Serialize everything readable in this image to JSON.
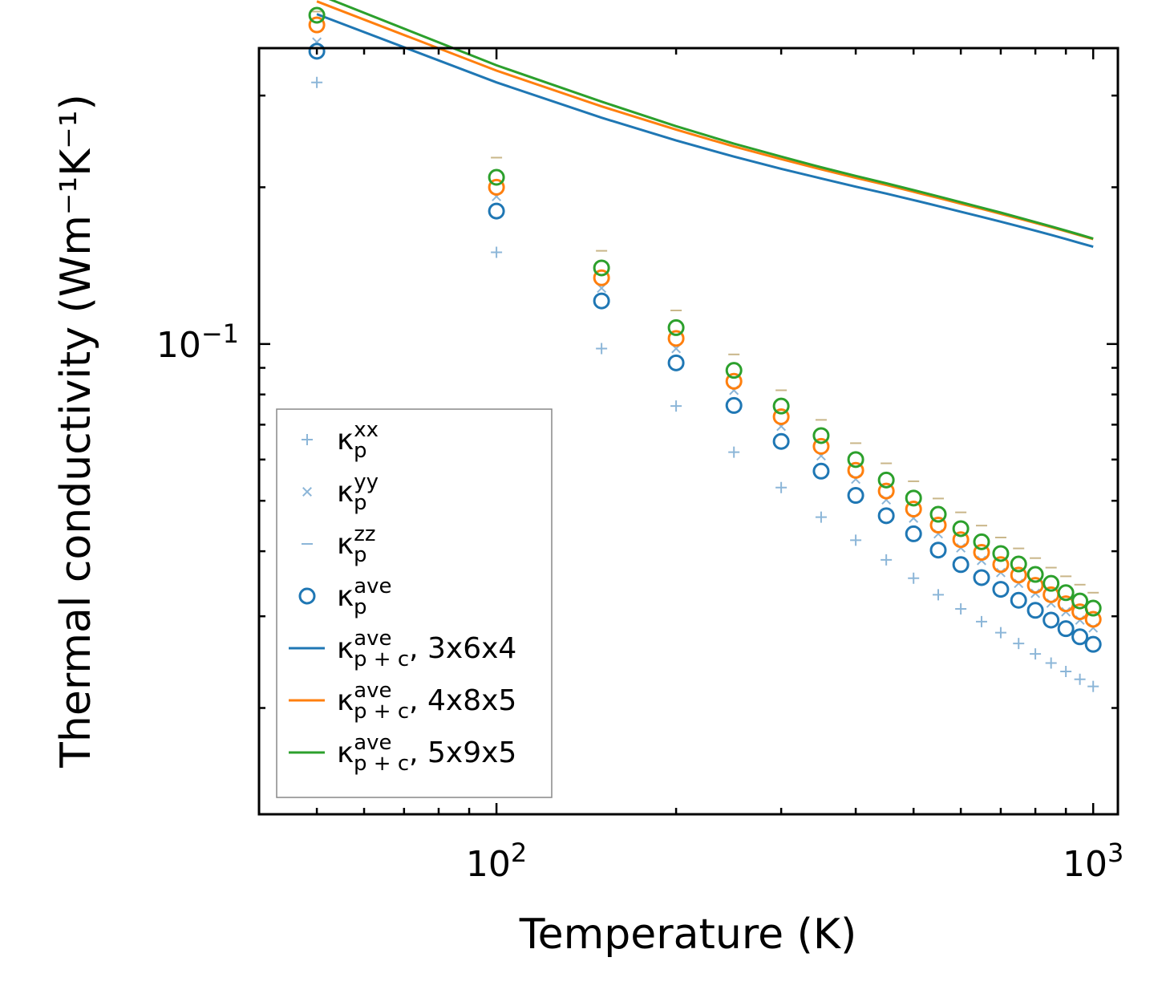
{
  "chart_data": {
    "type": "line",
    "scale": "log-log",
    "xlabel": "Temperature (K)",
    "ylabel": "Thermal conductivity (Wm⁻¹K⁻¹)",
    "xlim": [
      40,
      1100
    ],
    "ylim": [
      0.0125,
      0.37
    ],
    "x_tick_labels": [
      {
        "value": 100,
        "base": "10",
        "exp": "2"
      },
      {
        "value": 1000,
        "base": "10",
        "exp": "3"
      }
    ],
    "y_tick_labels": [
      {
        "value": 0.1,
        "base": "10",
        "exp": "−1"
      }
    ],
    "temperatures": [
      50,
      100,
      150,
      200,
      250,
      300,
      350,
      400,
      450,
      500,
      550,
      600,
      650,
      700,
      750,
      800,
      850,
      900,
      950,
      1000
    ],
    "point_series": [
      {
        "name": "kp_xx",
        "marker": "plus",
        "color": "#8cb6d8",
        "values": [
          0.318,
          0.15,
          0.098,
          0.076,
          0.062,
          0.053,
          0.0465,
          0.042,
          0.0385,
          0.0355,
          0.033,
          0.031,
          0.0293,
          0.0279,
          0.0266,
          0.0254,
          0.0244,
          0.0235,
          0.0227,
          0.022
        ]
      },
      {
        "name": "kp_yy",
        "marker": "x",
        "color": "#8cb6d8",
        "values": [
          0.38,
          0.192,
          0.128,
          0.098,
          0.0815,
          0.0695,
          0.061,
          0.055,
          0.0502,
          0.0463,
          0.0432,
          0.0406,
          0.0384,
          0.0364,
          0.0347,
          0.0332,
          0.0318,
          0.0306,
          0.0295,
          0.0285
        ]
      },
      {
        "name": "kp_zz",
        "marker": "dash",
        "color": "#c9b689",
        "values": [
          0.435,
          0.228,
          0.151,
          0.116,
          0.0955,
          0.0815,
          0.0715,
          0.0645,
          0.059,
          0.0545,
          0.0505,
          0.0475,
          0.0448,
          0.0425,
          0.0405,
          0.0388,
          0.0372,
          0.0358,
          0.0345,
          0.0333
        ]
      },
      {
        "name": "kp_ave_3x6x4",
        "marker": "circle",
        "color": "#1f77b4",
        "values": [
          0.365,
          0.18,
          0.121,
          0.092,
          0.0762,
          0.065,
          0.057,
          0.0512,
          0.0468,
          0.0432,
          0.0402,
          0.0377,
          0.0356,
          0.0338,
          0.0322,
          0.0308,
          0.0295,
          0.0284,
          0.0274,
          0.0265
        ]
      },
      {
        "name": "kp_ave_4x8x5",
        "marker": "circle",
        "color": "#ff7f0e",
        "values": [
          0.41,
          0.2,
          0.134,
          0.1025,
          0.0848,
          0.0725,
          0.0636,
          0.0572,
          0.0522,
          0.0482,
          0.0449,
          0.0421,
          0.0398,
          0.0377,
          0.036,
          0.0344,
          0.033,
          0.0317,
          0.0306,
          0.0296
        ]
      },
      {
        "name": "kp_ave_5x9x5",
        "marker": "circle",
        "color": "#2ca02c",
        "values": [
          0.428,
          0.209,
          0.14,
          0.1075,
          0.089,
          0.076,
          0.0667,
          0.06,
          0.0548,
          0.0506,
          0.0471,
          0.0442,
          0.0417,
          0.0396,
          0.0378,
          0.0361,
          0.0347,
          0.0333,
          0.0321,
          0.0311
        ]
      }
    ],
    "line_series": [
      {
        "name": "kpc_ave_3x6x4",
        "color": "#1f77b4",
        "x": [
          50,
          100,
          150,
          200,
          250,
          300,
          350,
          400,
          450,
          500,
          550,
          600,
          650,
          700,
          750,
          800,
          850,
          900,
          950,
          1000
        ],
        "values": [
          0.43,
          0.318,
          0.272,
          0.246,
          0.229,
          0.217,
          0.208,
          0.2005,
          0.1945,
          0.189,
          0.184,
          0.1795,
          0.1755,
          0.1718,
          0.1683,
          0.165,
          0.162,
          0.1591,
          0.1563,
          0.1537
        ]
      },
      {
        "name": "kpc_ave_4x8x5",
        "color": "#ff7f0e",
        "x": [
          50,
          100,
          150,
          200,
          250,
          300,
          350,
          400,
          450,
          500,
          550,
          600,
          650,
          700,
          750,
          800,
          850,
          900,
          950,
          1000
        ],
        "values": [
          0.455,
          0.335,
          0.286,
          0.258,
          0.2395,
          0.2265,
          0.2165,
          0.2085,
          0.202,
          0.196,
          0.1908,
          0.186,
          0.1818,
          0.1778,
          0.1742,
          0.1708,
          0.1676,
          0.1646,
          0.1617,
          0.159
        ]
      },
      {
        "name": "kpc_ave_5x9x5",
        "color": "#2ca02c",
        "x": [
          50,
          100,
          150,
          200,
          250,
          300,
          350,
          400,
          450,
          500,
          550,
          600,
          650,
          700,
          750,
          800,
          850,
          900,
          950,
          1000
        ],
        "values": [
          0.47,
          0.343,
          0.292,
          0.262,
          0.2425,
          0.229,
          0.2185,
          0.2103,
          0.2035,
          0.1975,
          0.1921,
          0.1872,
          0.1828,
          0.1788,
          0.175,
          0.1715,
          0.1682,
          0.1651,
          0.1622,
          0.1594
        ]
      }
    ],
    "legend": {
      "placement": "lower-left",
      "entries": [
        {
          "marker": "plus",
          "color": "#8cb6d8",
          "sym": "κ",
          "sub": "p",
          "sup": "xx",
          "suffix": ""
        },
        {
          "marker": "x",
          "color": "#8cb6d8",
          "sym": "κ",
          "sub": "p",
          "sup": "yy",
          "suffix": ""
        },
        {
          "marker": "dash",
          "color": "#8cb6d8",
          "sym": "κ",
          "sub": "p",
          "sup": "zz",
          "suffix": ""
        },
        {
          "marker": "circle",
          "color": "#1f77b4",
          "sym": "κ",
          "sub": "p",
          "sup": "ave",
          "suffix": ""
        },
        {
          "marker": "line",
          "color": "#1f77b4",
          "sym": "κ",
          "sub": "p + c",
          "sup": "ave",
          "suffix": ", 3x6x4"
        },
        {
          "marker": "line",
          "color": "#ff7f0e",
          "sym": "κ",
          "sub": "p + c",
          "sup": "ave",
          "suffix": ", 4x8x5"
        },
        {
          "marker": "line",
          "color": "#2ca02c",
          "sym": "κ",
          "sub": "p + c",
          "sup": "ave",
          "suffix": ", 5x9x5"
        }
      ]
    }
  }
}
